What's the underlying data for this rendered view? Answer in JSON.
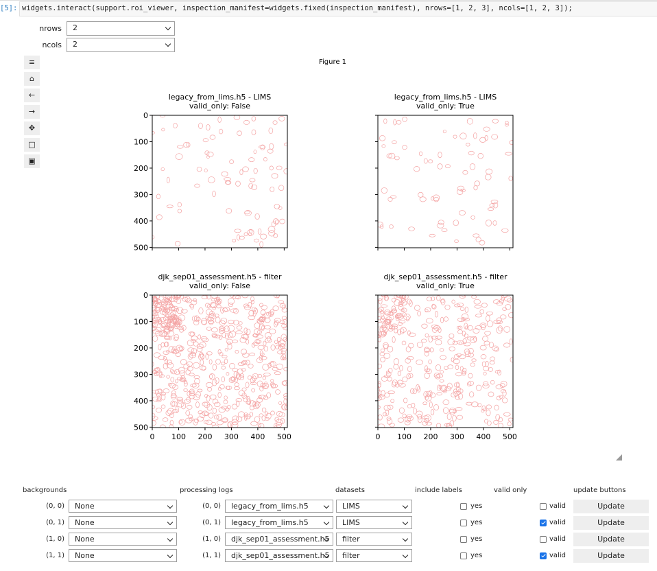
{
  "code": {
    "prompt": "[5]:",
    "text": "widgets.interact(support.roi_viewer, inspection_manifest=widgets.fixed(inspection_manifest), nrows=[1, 2, 3], ncols=[1, 2, 3]);"
  },
  "controls": [
    {
      "label": "nrows",
      "value": "2"
    },
    {
      "label": "ncols",
      "value": "2"
    }
  ],
  "figure": {
    "title": "Figure 1",
    "ticks": [
      0,
      100,
      200,
      300,
      400,
      500
    ],
    "axes": [
      {
        "title": "legacy_from_lims.h5 - LIMS",
        "subtitle": "valid_only: False",
        "show_xlabels": false,
        "show_ylabels": true,
        "rois": 90
      },
      {
        "title": "legacy_from_lims.h5 - LIMS",
        "subtitle": "valid_only: True",
        "show_xlabels": false,
        "show_ylabels": false,
        "rois": 75
      },
      {
        "title": "djk_sep01_assessment.h5 - filter",
        "subtitle": "valid_only: False",
        "show_xlabels": true,
        "show_ylabels": true,
        "rois": 600
      },
      {
        "title": "djk_sep01_assessment.h5 - filter",
        "subtitle": "valid_only: True",
        "show_xlabels": true,
        "show_ylabels": false,
        "rois": 380
      }
    ]
  },
  "table": {
    "headers": [
      "backgrounds",
      "processing logs",
      "datasets",
      "include labels",
      "valid only",
      "update buttons"
    ],
    "rows": [
      {
        "label": "(0, 0)",
        "background": "None",
        "log_label": "(0, 0)",
        "log": "legacy_from_lims.h5",
        "dataset": "LIMS",
        "labels_checked": false,
        "labels_text": "yes",
        "valid_checked": false,
        "valid_text": "valid",
        "button": "Update"
      },
      {
        "label": "(0, 1)",
        "background": "None",
        "log_label": "(0, 1)",
        "log": "legacy_from_lims.h5",
        "dataset": "LIMS",
        "labels_checked": false,
        "labels_text": "yes",
        "valid_checked": true,
        "valid_text": "valid",
        "button": "Update"
      },
      {
        "label": "(1, 0)",
        "background": "None",
        "log_label": "(1, 0)",
        "log": "djk_sep01_assessment.h5",
        "dataset": "filter",
        "labels_checked": false,
        "labels_text": "yes",
        "valid_checked": false,
        "valid_text": "valid",
        "button": "Update"
      },
      {
        "label": "(1, 1)",
        "background": "None",
        "log_label": "(1, 1)",
        "log": "djk_sep01_assessment.h5",
        "dataset": "filter",
        "labels_checked": false,
        "labels_text": "yes",
        "valid_checked": true,
        "valid_text": "valid",
        "button": "Update"
      }
    ]
  }
}
